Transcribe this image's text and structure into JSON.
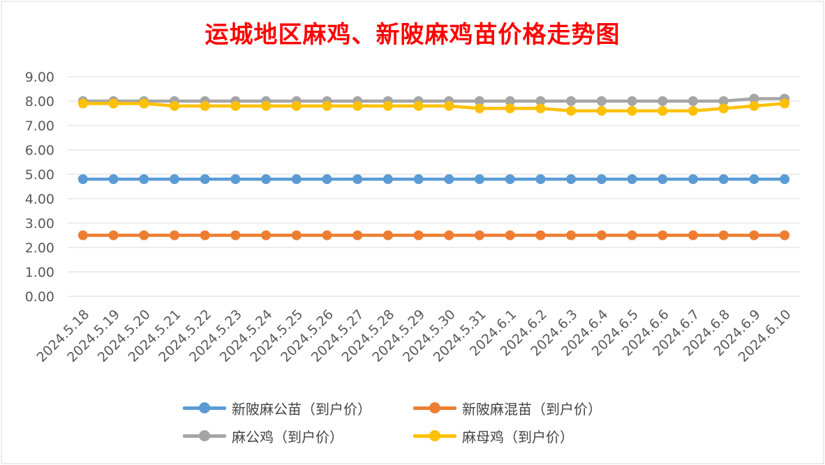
{
  "chart_data": {
    "type": "line",
    "title": "运城地区麻鸡、新陂麻鸡苗价格走势图",
    "xlabel": "",
    "ylabel": "",
    "ylim": [
      0,
      9
    ],
    "yticks": [
      "0.00",
      "1.00",
      "2.00",
      "3.00",
      "4.00",
      "5.00",
      "6.00",
      "7.00",
      "8.00",
      "9.00"
    ],
    "grid": true,
    "legend_position": "bottom",
    "categories": [
      "2024.5.18",
      "2024.5.19",
      "2024.5.20",
      "2024.5.21",
      "2024.5.22",
      "2024.5.23",
      "2024.5.24",
      "2024.5.25",
      "2024.5.26",
      "2024.5.27",
      "2024.5.28",
      "2024.5.29",
      "2024.5.30",
      "2024.5.31",
      "2024.6.1",
      "2024.6.2",
      "2024.6.3",
      "2024.6.4",
      "2024.6.5",
      "2024.6.6",
      "2024.6.7",
      "2024.6.8",
      "2024.6.9",
      "2024.6.10"
    ],
    "series": [
      {
        "name": "新陂麻公苗（到户价）",
        "color": "#5b9bd5",
        "values": [
          4.8,
          4.8,
          4.8,
          4.8,
          4.8,
          4.8,
          4.8,
          4.8,
          4.8,
          4.8,
          4.8,
          4.8,
          4.8,
          4.8,
          4.8,
          4.8,
          4.8,
          4.8,
          4.8,
          4.8,
          4.8,
          4.8,
          4.8,
          4.8
        ]
      },
      {
        "name": "新陂麻混苗（到户价）",
        "color": "#ed7d31",
        "values": [
          2.5,
          2.5,
          2.5,
          2.5,
          2.5,
          2.5,
          2.5,
          2.5,
          2.5,
          2.5,
          2.5,
          2.5,
          2.5,
          2.5,
          2.5,
          2.5,
          2.5,
          2.5,
          2.5,
          2.5,
          2.5,
          2.5,
          2.5,
          2.5
        ]
      },
      {
        "name": "麻公鸡（到户价）",
        "color": "#a5a5a5",
        "values": [
          8.0,
          8.0,
          8.0,
          8.0,
          8.0,
          8.0,
          8.0,
          8.0,
          8.0,
          8.0,
          8.0,
          8.0,
          8.0,
          8.0,
          8.0,
          8.0,
          8.0,
          8.0,
          8.0,
          8.0,
          8.0,
          8.0,
          8.1,
          8.1
        ]
      },
      {
        "name": "麻母鸡（到户价）",
        "color": "#ffc000",
        "values": [
          7.9,
          7.9,
          7.9,
          7.8,
          7.8,
          7.8,
          7.8,
          7.8,
          7.8,
          7.8,
          7.8,
          7.8,
          7.8,
          7.7,
          7.7,
          7.7,
          7.6,
          7.6,
          7.6,
          7.6,
          7.6,
          7.7,
          7.8,
          7.9
        ]
      }
    ]
  }
}
